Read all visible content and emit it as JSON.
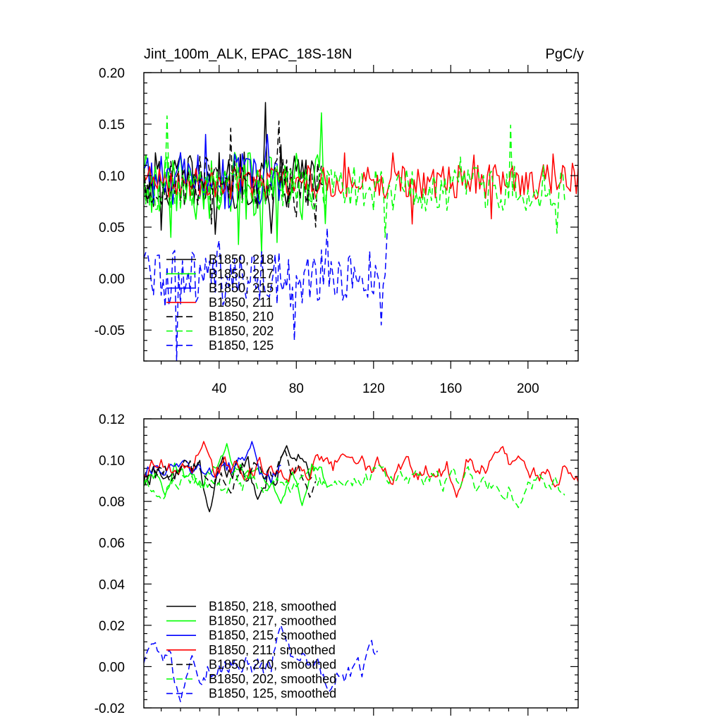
{
  "chart_data": [
    {
      "id": "raw",
      "type": "line",
      "title": "Jint_100m_ALK, EPAC_18S-18N",
      "units": "PgC/y",
      "xlim": [
        1,
        226
      ],
      "ylim": [
        -0.08,
        0.2
      ],
      "yticks": [
        -0.05,
        0.0,
        0.05,
        0.1,
        0.15,
        0.2
      ],
      "ytick_labels": [
        "-0.05",
        "0.00",
        "0.05",
        "0.10",
        "0.15",
        "0.20"
      ],
      "xticks": [
        40,
        80,
        120,
        160,
        200
      ],
      "xtick_labels": [
        "40",
        "80",
        "120",
        "160",
        "200"
      ],
      "legend_position": "lower-left",
      "series": [
        {
          "name": "B1850, 218",
          "color": "#000000",
          "dash": "solid",
          "x_start": 1,
          "x_end": 94,
          "mean": 0.095,
          "amp": 0.02,
          "peaks": [
            [
              64,
              0.171
            ],
            [
              69,
              0.105
            ],
            [
              72,
              0.13
            ],
            [
              67,
              0.044
            ],
            [
              10,
              0.047
            ],
            [
              38,
              0.043
            ]
          ]
        },
        {
          "name": "B1850, 217",
          "color": "#00ff00",
          "dash": "solid",
          "x_start": 1,
          "x_end": 96,
          "mean": 0.088,
          "amp": 0.025,
          "peaks": [
            [
              93,
              0.161
            ],
            [
              15,
              0.04
            ],
            [
              70,
              0.035
            ],
            [
              50,
              0.033
            ],
            [
              62,
              0.025
            ]
          ]
        },
        {
          "name": "B1850, 215",
          "color": "#0000ff",
          "dash": "solid",
          "x_start": 1,
          "x_end": 72,
          "mean": 0.095,
          "amp": 0.02,
          "peaks": [
            [
              33,
              0.14
            ],
            [
              65,
              0.14
            ],
            [
              3,
              0.117
            ]
          ]
        },
        {
          "name": "B1850, 211",
          "color": "#ff0000",
          "dash": "solid",
          "x_start": 1,
          "x_end": 226,
          "mean": 0.094,
          "amp": 0.012,
          "peaks": [
            [
              105,
              0.122
            ],
            [
              130,
              0.122
            ],
            [
              172,
              0.12
            ],
            [
              140,
              0.053
            ],
            [
              181,
              0.058
            ],
            [
              213,
              0.121
            ],
            [
              223,
              0.112
            ]
          ]
        },
        {
          "name": "B1850, 210",
          "color": "#000000",
          "dash": "dash",
          "x_start": 1,
          "x_end": 93,
          "mean": 0.094,
          "amp": 0.018,
          "peaks": [
            [
              46,
              0.146
            ],
            [
              71,
              0.153
            ],
            [
              36,
              0.053
            ],
            [
              80,
              0.06
            ],
            [
              90,
              0.05
            ]
          ]
        },
        {
          "name": "B1850, 202",
          "color": "#00ff00",
          "dash": "dash",
          "x_start": 1,
          "x_end": 219,
          "mean": 0.088,
          "amp": 0.016,
          "peaks": [
            [
              13,
              0.158
            ],
            [
              191,
              0.149
            ],
            [
              126,
              0.04
            ],
            [
              215,
              0.044
            ],
            [
              165,
              0.118
            ]
          ]
        },
        {
          "name": "B1850, 125",
          "color": "#0000ff",
          "dash": "dash",
          "x_start": 1,
          "x_end": 127,
          "mean": 0.0,
          "amp": 0.02,
          "peaks": [
            [
              96,
              0.049
            ],
            [
              127,
              0.044
            ],
            [
              40,
              0.037
            ],
            [
              18,
              -0.08
            ],
            [
              79,
              -0.06
            ],
            [
              124,
              -0.045
            ]
          ]
        }
      ]
    },
    {
      "id": "smoothed",
      "type": "line",
      "title": "",
      "units": "",
      "xlim": [
        1,
        226
      ],
      "ylim": [
        -0.02,
        0.12
      ],
      "yticks": [
        -0.02,
        0.0,
        0.02,
        0.04,
        0.06,
        0.08,
        0.1,
        0.12
      ],
      "ytick_labels": [
        "-0.02",
        "0.00",
        "0.02",
        "0.04",
        "0.06",
        "0.08",
        "0.10",
        "0.12"
      ],
      "xticks": [
        40,
        80,
        120,
        160,
        200
      ],
      "xtick_labels": [],
      "legend_position": "lower-left",
      "series": [
        {
          "name": "B1850, 218, smoothed",
          "color": "#000000",
          "dash": "solid",
          "x_start": 1,
          "x_end": 88,
          "mean": 0.094,
          "amp": 0.005,
          "peaks": [
            [
              35,
              0.075
            ],
            [
              60,
              0.081
            ],
            [
              75,
              0.107
            ],
            [
              13,
              0.092
            ]
          ]
        },
        {
          "name": "B1850, 217, smoothed",
          "color": "#00ff00",
          "dash": "solid",
          "x_start": 1,
          "x_end": 96,
          "mean": 0.091,
          "amp": 0.004,
          "peaks": [
            [
              44,
              0.108
            ],
            [
              72,
              0.079
            ],
            [
              83,
              0.078
            ],
            [
              12,
              0.083
            ]
          ]
        },
        {
          "name": "B1850, 215, smoothed",
          "color": "#0000ff",
          "dash": "solid",
          "x_start": 1,
          "x_end": 72,
          "mean": 0.095,
          "amp": 0.004,
          "peaks": [
            [
              57,
              0.109
            ],
            [
              15,
              0.098
            ],
            [
              38,
              0.092
            ]
          ]
        },
        {
          "name": "B1850, 211, smoothed",
          "color": "#ff0000",
          "dash": "solid",
          "x_start": 1,
          "x_end": 226,
          "mean": 0.096,
          "amp": 0.004,
          "peaks": [
            [
              32,
              0.109
            ],
            [
              104,
              0.103
            ],
            [
              163,
              0.082
            ],
            [
              195,
              0.102
            ],
            [
              214,
              0.087
            ]
          ]
        },
        {
          "name": "B1850, 210, smoothed",
          "color": "#000000",
          "dash": "dash",
          "x_start": 1,
          "x_end": 90,
          "mean": 0.094,
          "amp": 0.004,
          "peaks": [
            [
              74,
              0.105
            ],
            [
              87,
              0.082
            ]
          ]
        },
        {
          "name": "B1850, 202, smoothed",
          "color": "#00ff00",
          "dash": "dash",
          "x_start": 1,
          "x_end": 219,
          "mean": 0.09,
          "amp": 0.004,
          "peaks": [
            [
              195,
              0.077
            ],
            [
              219,
              0.083
            ],
            [
              105,
              0.087
            ]
          ]
        },
        {
          "name": "B1850, 125, smoothed",
          "color": "#0000ff",
          "dash": "dash",
          "x_start": 1,
          "x_end": 122,
          "mean": 0.002,
          "amp": 0.005,
          "peaks": [
            [
              72,
              0.02
            ],
            [
              20,
              -0.017
            ],
            [
              97,
              -0.012
            ],
            [
              5,
              0.011
            ]
          ]
        }
      ]
    }
  ]
}
